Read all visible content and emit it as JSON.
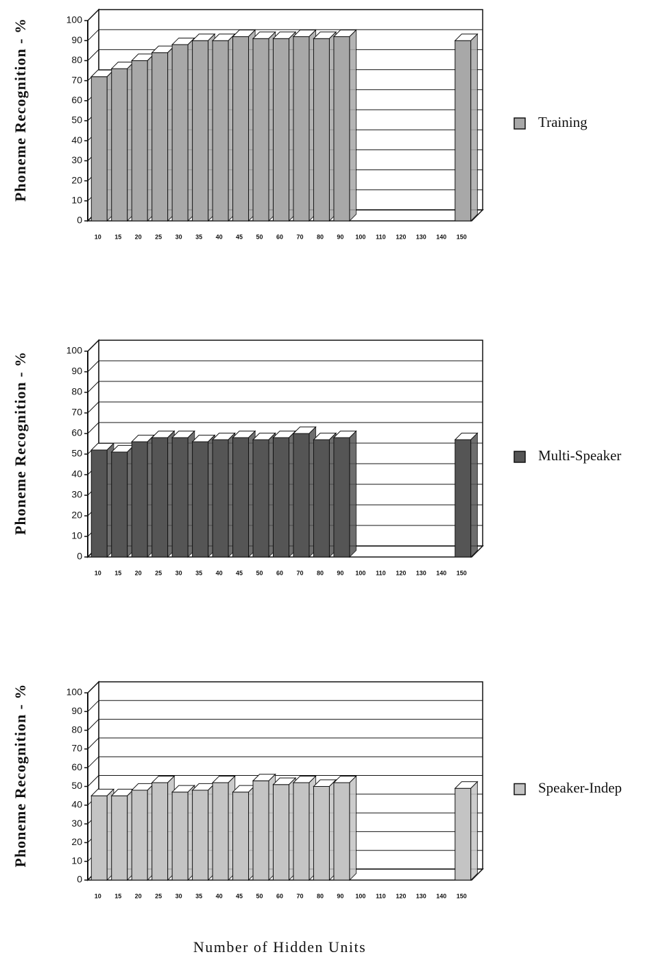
{
  "chart_data": [
    {
      "type": "bar",
      "ylabel": "Phoneme Recognition - %",
      "categories": [
        "10",
        "15",
        "20",
        "25",
        "30",
        "35",
        "40",
        "45",
        "50",
        "60",
        "70",
        "80",
        "90",
        "100",
        "110",
        "120",
        "130",
        "140",
        "150"
      ],
      "series": [
        {
          "name": "Training",
          "color": "#a8a8a8",
          "values": [
            72,
            76,
            80,
            84,
            88,
            90,
            90,
            92,
            91,
            91,
            92,
            91,
            92,
            null,
            null,
            null,
            null,
            null,
            90
          ]
        }
      ],
      "ylim": [
        0,
        100
      ],
      "yticks": [
        0,
        10,
        20,
        30,
        40,
        50,
        60,
        70,
        80,
        90,
        100
      ],
      "grid": true,
      "legend": "right"
    },
    {
      "type": "bar",
      "ylabel": "Phoneme Recognition - %",
      "categories": [
        "10",
        "15",
        "20",
        "25",
        "30",
        "35",
        "40",
        "45",
        "50",
        "60",
        "70",
        "80",
        "90",
        "100",
        "110",
        "120",
        "130",
        "140",
        "150"
      ],
      "series": [
        {
          "name": "Multi-Speaker",
          "color": "#555555",
          "values": [
            52,
            51,
            56,
            58,
            58,
            56,
            57,
            58,
            57,
            58,
            60,
            57,
            58,
            null,
            null,
            null,
            null,
            null,
            57
          ]
        }
      ],
      "ylim": [
        0,
        100
      ],
      "yticks": [
        0,
        10,
        20,
        30,
        40,
        50,
        60,
        70,
        80,
        90,
        100
      ],
      "grid": true,
      "legend": "right"
    },
    {
      "type": "bar",
      "ylabel": "Phoneme Recognition - %",
      "xlabel": "Number of Hidden Units",
      "categories": [
        "10",
        "15",
        "20",
        "25",
        "30",
        "35",
        "40",
        "45",
        "50",
        "60",
        "70",
        "80",
        "90",
        "100",
        "110",
        "120",
        "130",
        "140",
        "150"
      ],
      "series": [
        {
          "name": "Speaker-Indep",
          "color": "#c4c4c4",
          "values": [
            45,
            45,
            48,
            52,
            47,
            48,
            52,
            47,
            53,
            51,
            52,
            50,
            52,
            null,
            null,
            null,
            null,
            null,
            49
          ]
        }
      ],
      "ylim": [
        0,
        100
      ],
      "yticks": [
        0,
        10,
        20,
        30,
        40,
        50,
        60,
        70,
        80,
        90,
        100
      ],
      "grid": true,
      "legend": "right"
    }
  ]
}
